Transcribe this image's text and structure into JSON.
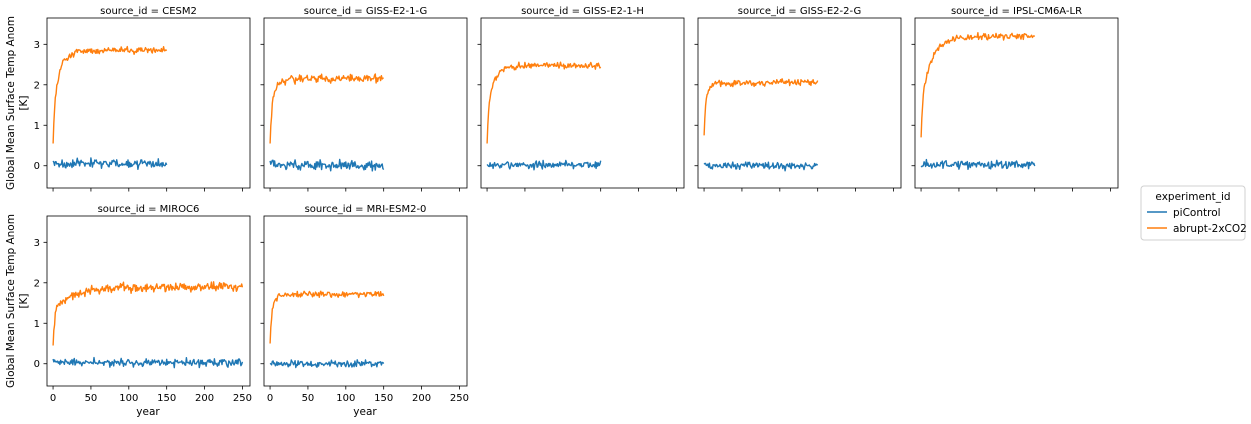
{
  "chart_data": {
    "type": "line",
    "facet_label_prefix": "source_id = ",
    "ylabel": "Global Mean Surface Temp Anom\n[K]",
    "xlabel": "year",
    "xlim": [
      -8,
      260
    ],
    "ylim": [
      -0.55,
      3.65
    ],
    "xticks": [
      0,
      50,
      100,
      150,
      200,
      250
    ],
    "yticks": [
      0,
      1,
      2,
      3
    ],
    "legend": {
      "title": "experiment_id",
      "placement": "right",
      "entries": [
        {
          "name": "piControl",
          "color": "#1f77b4"
        },
        {
          "name": "abrupt-2xCO2",
          "color": "#ff7f0e"
        }
      ]
    },
    "panels": [
      {
        "source_id": "CESM2",
        "length": 150,
        "warm": {
          "x0": 0.55,
          "final": 2.85,
          "tau": 9,
          "noise": 0.09
        },
        "ctrl": {
          "mean": 0.05,
          "noise": 0.13
        }
      },
      {
        "source_id": "GISS-E2-1-G",
        "length": 150,
        "warm": {
          "x0": 0.55,
          "final": 2.15,
          "tau": 7,
          "noise": 0.12
        },
        "ctrl": {
          "mean": 0.02,
          "noise": 0.14
        }
      },
      {
        "source_id": "GISS-E2-1-H",
        "length": 150,
        "warm": {
          "x0": 0.55,
          "final": 2.48,
          "tau": 10,
          "noise": 0.09
        },
        "ctrl": {
          "mean": 0.02,
          "noise": 0.11
        }
      },
      {
        "source_id": "GISS-E2-2-G",
        "length": 150,
        "warm": {
          "x0": 0.75,
          "final": 2.05,
          "tau": 6,
          "noise": 0.1
        },
        "ctrl": {
          "mean": 0.0,
          "noise": 0.11
        }
      },
      {
        "source_id": "IPSL-CM6A-LR",
        "length": 150,
        "warm": {
          "x0": 0.7,
          "final": 3.2,
          "tau": 14,
          "noise": 0.1
        },
        "ctrl": {
          "mean": 0.03,
          "noise": 0.12
        }
      },
      {
        "source_id": "MIROC6",
        "length": 250,
        "warm": {
          "x0": 0.45,
          "final": 1.9,
          "tau": 30,
          "noise": 0.14
        },
        "ctrl": {
          "mean": 0.03,
          "noise": 0.12
        }
      },
      {
        "source_id": "MRI-ESM2-0",
        "length": 150,
        "warm": {
          "x0": 0.5,
          "final": 1.72,
          "tau": 7,
          "noise": 0.09
        },
        "ctrl": {
          "mean": 0.0,
          "noise": 0.1
        }
      }
    ]
  }
}
